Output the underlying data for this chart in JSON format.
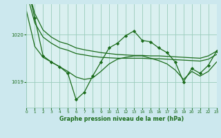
{
  "background_color": "#cce8ee",
  "plot_bg_color": "#daf0f0",
  "grid_color": "#99ccbb",
  "line_color": "#1a6b1a",
  "marker_color": "#1a6b1a",
  "xlabel": "Graphe pression niveau de la mer (hPa)",
  "xlim": [
    0,
    23
  ],
  "ylim": [
    1018.45,
    1020.65
  ],
  "yticks": [
    1019,
    1020
  ],
  "xticks": [
    0,
    1,
    2,
    3,
    4,
    5,
    6,
    7,
    8,
    9,
    10,
    11,
    12,
    13,
    14,
    15,
    16,
    17,
    18,
    19,
    20,
    21,
    22,
    23
  ],
  "series": [
    {
      "x": [
        0,
        1,
        2,
        3,
        4,
        5,
        6,
        7,
        8,
        9,
        10,
        11,
        12,
        13,
        14,
        15,
        16,
        17,
        18,
        19,
        20,
        21,
        22,
        23
      ],
      "y": [
        1021.1,
        1020.45,
        1020.1,
        1019.95,
        1019.85,
        1019.8,
        1019.72,
        1019.68,
        1019.65,
        1019.62,
        1019.6,
        1019.58,
        1019.57,
        1019.56,
        1019.56,
        1019.55,
        1019.55,
        1019.54,
        1019.53,
        1019.52,
        1019.51,
        1019.5,
        1019.55,
        1019.65
      ],
      "has_markers": false,
      "linewidth": 0.9
    },
    {
      "x": [
        0,
        1,
        2,
        3,
        4,
        5,
        6,
        7,
        8,
        9,
        10,
        11,
        12,
        13,
        14,
        15,
        16,
        17,
        18,
        19,
        20,
        21,
        22,
        23
      ],
      "y": [
        1020.9,
        1020.25,
        1019.95,
        1019.82,
        1019.72,
        1019.67,
        1019.6,
        1019.57,
        1019.54,
        1019.52,
        1019.51,
        1019.5,
        1019.5,
        1019.5,
        1019.5,
        1019.49,
        1019.49,
        1019.48,
        1019.47,
        1019.46,
        1019.45,
        1019.44,
        1019.48,
        1019.58
      ],
      "has_markers": false,
      "linewidth": 0.9
    },
    {
      "x": [
        0,
        1,
        2,
        3,
        4,
        5,
        6,
        7,
        8,
        9,
        10,
        11,
        12,
        13,
        14,
        15,
        16,
        17,
        18,
        19,
        20,
        21,
        22,
        23
      ],
      "y": [
        1021.1,
        1020.35,
        1019.55,
        1019.42,
        1019.32,
        1019.18,
        1018.62,
        1018.78,
        1019.12,
        1019.42,
        1019.72,
        1019.82,
        1019.98,
        1020.08,
        1019.88,
        1019.85,
        1019.72,
        1019.62,
        1019.42,
        1019.0,
        1019.28,
        1019.18,
        1019.35,
        1019.65
      ],
      "has_markers": true,
      "linewidth": 0.9
    },
    {
      "x": [
        0,
        1,
        2,
        3,
        4,
        5,
        6,
        7,
        8,
        9,
        10,
        11,
        12,
        13,
        14,
        15,
        16,
        17,
        18,
        19,
        20,
        21,
        22,
        23
      ],
      "y": [
        1020.5,
        1019.75,
        1019.52,
        1019.42,
        1019.32,
        1019.22,
        1019.1,
        1019.05,
        1019.08,
        1019.22,
        1019.38,
        1019.48,
        1019.52,
        1019.55,
        1019.55,
        1019.5,
        1019.45,
        1019.38,
        1019.25,
        1019.05,
        1019.22,
        1019.12,
        1019.22,
        1019.42
      ],
      "has_markers": false,
      "linewidth": 0.9
    }
  ]
}
